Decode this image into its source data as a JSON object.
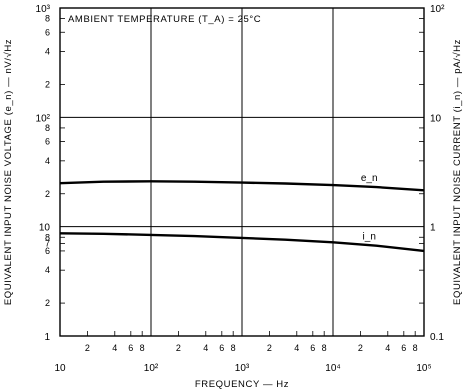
{
  "chart_data": {
    "type": "line",
    "title": "AMBIENT TEMPERATURE (T_A) = 25°C",
    "xlabel": "FREQUENCY — Hz",
    "ylabel": "EQUIVALENT INPUT NOISE VOLTAGE (e_n) — nV/√Hz",
    "y2label": "EQUIVALENT INPUT NOISE CURRENT (i_n) — pA/√Hz",
    "xscale": "log",
    "yscale": "log",
    "xlim": [
      10,
      100000
    ],
    "ylim": [
      1,
      1000
    ],
    "y2lim": [
      0.1,
      100
    ],
    "grid": true,
    "x_major_ticks": [
      {
        "value": 10,
        "label": "10"
      },
      {
        "value": 100,
        "label": "10²"
      },
      {
        "value": 1000,
        "label": "10³"
      },
      {
        "value": 10000,
        "label": "10⁴"
      },
      {
        "value": 100000,
        "label": "10⁵"
      }
    ],
    "x_minor_ticks": [
      {
        "value": 20,
        "label": "2"
      },
      {
        "value": 40,
        "label": "4"
      },
      {
        "value": 60,
        "label": "6"
      },
      {
        "value": 80,
        "label": "8"
      },
      {
        "value": 200,
        "label": "2"
      },
      {
        "value": 400,
        "label": "4"
      },
      {
        "value": 600,
        "label": "6"
      },
      {
        "value": 800,
        "label": "8"
      },
      {
        "value": 2000,
        "label": "2"
      },
      {
        "value": 4000,
        "label": "4"
      },
      {
        "value": 6000,
        "label": "6"
      },
      {
        "value": 8000,
        "label": "8"
      },
      {
        "value": 20000,
        "label": "2"
      },
      {
        "value": 40000,
        "label": "4"
      },
      {
        "value": 60000,
        "label": "6"
      },
      {
        "value": 80000,
        "label": "8"
      }
    ],
    "y_major_ticks": [
      {
        "value": 1,
        "label": "1"
      },
      {
        "value": 10,
        "label": "10"
      },
      {
        "value": 100,
        "label": "10²"
      },
      {
        "value": 1000,
        "label": "10³"
      }
    ],
    "y_minor_ticks": [
      {
        "value": 2,
        "label": "2"
      },
      {
        "value": 4,
        "label": "4"
      },
      {
        "value": 6,
        "label": "6"
      },
      {
        "value": 7,
        "label": "7"
      },
      {
        "value": 8,
        "label": "8"
      },
      {
        "value": 20,
        "label": "2"
      },
      {
        "value": 40,
        "label": "4"
      },
      {
        "value": 60,
        "label": "6"
      },
      {
        "value": 80,
        "label": "8"
      },
      {
        "value": 200,
        "label": "2"
      },
      {
        "value": 400,
        "label": "4"
      },
      {
        "value": 600,
        "label": "6"
      },
      {
        "value": 800,
        "label": "8"
      }
    ],
    "y2_major_ticks": [
      {
        "value": 0.1,
        "label": "0.1"
      },
      {
        "value": 1,
        "label": "1"
      },
      {
        "value": 10,
        "label": "10"
      },
      {
        "value": 100,
        "label": "10²"
      }
    ],
    "series": [
      {
        "name": "e_n",
        "axis": "y",
        "x": [
          10,
          30,
          100,
          300,
          1000,
          3000,
          10000,
          30000,
          100000
        ],
        "y": [
          25,
          25.8,
          26,
          25.8,
          25.3,
          24.8,
          24,
          23,
          21.5
        ]
      },
      {
        "name": "i_n",
        "axis": "y2",
        "x": [
          10,
          30,
          100,
          300,
          1000,
          3000,
          10000,
          30000,
          100000
        ],
        "y": [
          0.87,
          0.86,
          0.84,
          0.82,
          0.79,
          0.76,
          0.72,
          0.67,
          0.6
        ]
      }
    ]
  }
}
